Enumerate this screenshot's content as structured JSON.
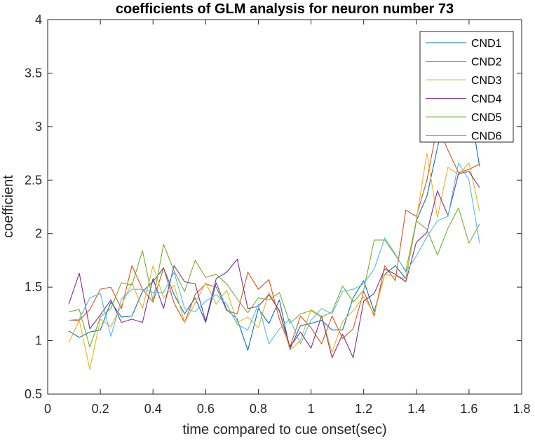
{
  "chart_data": {
    "type": "line",
    "title": "coefficients of GLM analysis for neuron number 73",
    "xlabel": "time compared to cue onset(sec)",
    "ylabel": "coefficient",
    "xlim": [
      0,
      1.8
    ],
    "ylim": [
      0.5,
      4
    ],
    "xticks": [
      0,
      0.2,
      0.4,
      0.6,
      0.8,
      1,
      1.2,
      1.4,
      1.6,
      1.8
    ],
    "xtick_labels": [
      "0",
      "0.2",
      "0.4",
      "0.6",
      "0.8",
      "1",
      "1.2",
      "1.4",
      "1.6",
      "1.8"
    ],
    "yticks": [
      0.5,
      1,
      1.5,
      2,
      2.5,
      3,
      3.5,
      4
    ],
    "ytick_labels": [
      "0.5",
      "1",
      "1.5",
      "2",
      "2.5",
      "3",
      "3.5",
      "4"
    ],
    "grid": false,
    "legend_position": "top-right",
    "x": [
      0.08,
      0.12,
      0.16,
      0.2,
      0.24,
      0.28,
      0.32,
      0.36,
      0.4,
      0.44,
      0.48,
      0.52,
      0.56,
      0.6,
      0.64,
      0.68,
      0.72,
      0.76,
      0.8,
      0.84,
      0.88,
      0.92,
      0.96,
      1.0,
      1.04,
      1.08,
      1.12,
      1.16,
      1.2,
      1.24,
      1.28,
      1.32,
      1.36,
      1.4,
      1.44,
      1.48,
      1.52,
      1.56,
      1.6,
      1.64
    ],
    "series": [
      {
        "name": "CND1",
        "color": "#0072BD",
        "values": [
          1.09,
          1.03,
          1.08,
          1.1,
          1.36,
          1.22,
          1.23,
          1.46,
          1.55,
          1.68,
          1.43,
          1.25,
          1.4,
          1.17,
          1.54,
          1.29,
          1.2,
          0.91,
          1.3,
          1.16,
          1.38,
          0.92,
          1.14,
          1.16,
          1.19,
          1.1,
          1.1,
          1.4,
          1.56,
          1.27,
          1.62,
          1.7,
          1.58,
          2.12,
          2.35,
          2.8,
          3.24,
          3.28,
          3.23,
          2.63
        ]
      },
      {
        "name": "CND2",
        "color": "#D95319",
        "values": [
          1.19,
          1.19,
          1.29,
          1.48,
          1.5,
          1.3,
          1.7,
          1.48,
          1.36,
          1.68,
          1.35,
          1.17,
          1.43,
          1.53,
          1.5,
          1.28,
          1.25,
          1.64,
          1.48,
          1.57,
          1.2,
          0.94,
          1.23,
          1.12,
          0.97,
          1.23,
          1.02,
          1.11,
          1.46,
          1.23,
          1.7,
          1.56,
          2.22,
          2.16,
          2.5,
          3.01,
          2.78,
          2.57,
          2.6,
          2.65
        ]
      },
      {
        "name": "CND3",
        "color": "#EDB120",
        "values": [
          0.98,
          1.19,
          0.73,
          1.2,
          1.13,
          1.33,
          1.54,
          1.3,
          1.7,
          1.4,
          1.52,
          1.17,
          1.35,
          1.54,
          1.34,
          1.47,
          1.17,
          1.22,
          1.12,
          1.45,
          1.27,
          0.91,
          1.0,
          1.29,
          1.23,
          0.89,
          1.18,
          1.28,
          1.41,
          1.25,
          1.62,
          1.6,
          1.58,
          2.13,
          2.75,
          2.15,
          2.62,
          2.55,
          2.66,
          2.21
        ]
      },
      {
        "name": "CND4",
        "color": "#7E2F8E",
        "values": [
          1.34,
          1.63,
          1.11,
          1.24,
          1.38,
          1.17,
          1.2,
          1.17,
          1.58,
          1.3,
          1.7,
          1.55,
          1.53,
          1.18,
          1.58,
          1.64,
          1.76,
          1.3,
          1.32,
          1.43,
          1.28,
          0.94,
          1.08,
          0.93,
          1.23,
          0.84,
          1.06,
          0.84,
          1.37,
          1.44,
          1.67,
          1.62,
          1.55,
          1.92,
          2.01,
          2.4,
          2.17,
          2.56,
          2.58,
          2.43
        ]
      },
      {
        "name": "CND5",
        "color": "#77AC30",
        "values": [
          1.27,
          1.29,
          0.94,
          1.22,
          1.3,
          1.54,
          1.52,
          1.84,
          1.37,
          1.9,
          1.65,
          1.46,
          1.75,
          1.59,
          1.62,
          1.53,
          1.39,
          1.26,
          1.4,
          1.38,
          1.45,
          1.16,
          1.25,
          1.28,
          1.22,
          1.27,
          1.51,
          1.36,
          1.47,
          1.94,
          1.94,
          1.8,
          1.65,
          2.12,
          2.04,
          1.8,
          2.05,
          2.24,
          1.91,
          2.09
        ]
      },
      {
        "name": "CND6",
        "color": "#4DBEEE",
        "values": [
          1.19,
          1.2,
          1.4,
          1.44,
          1.04,
          1.39,
          1.48,
          1.48,
          1.45,
          1.45,
          1.64,
          1.3,
          1.27,
          1.37,
          1.43,
          1.34,
          1.15,
          1.1,
          1.34,
          0.97,
          1.11,
          1.2,
          0.97,
          1.19,
          1.3,
          1.25,
          1.46,
          1.48,
          1.53,
          1.67,
          1.96,
          1.81,
          1.64,
          1.79,
          1.97,
          2.12,
          2.16,
          2.66,
          2.5,
          1.91
        ]
      }
    ]
  }
}
